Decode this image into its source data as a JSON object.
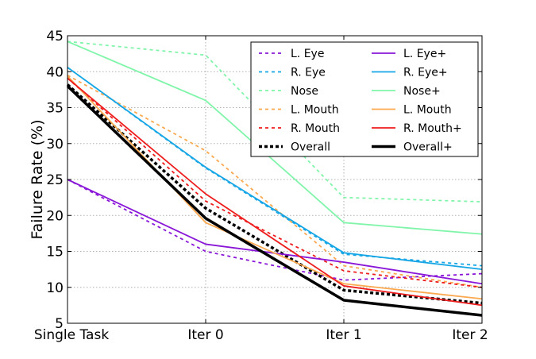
{
  "chart_data": {
    "type": "line",
    "categories": [
      "Single Task",
      "Iter 0",
      "Iter 1",
      "Iter 2"
    ],
    "ylabel": "Failure Rate (%)",
    "xlabel": "",
    "ylim": [
      5,
      45
    ],
    "yticks": [
      5,
      10,
      15,
      20,
      25,
      30,
      35,
      40,
      45
    ],
    "grid": true,
    "legend_position": "top-right",
    "series": [
      {
        "name": "L. Eye",
        "color": "#8a17d8",
        "dashed": true,
        "bold": false,
        "values": [
          25.0,
          15.0,
          11.0,
          11.9
        ]
      },
      {
        "name": "R. Eye",
        "color": "#16a6e6",
        "dashed": true,
        "bold": false,
        "values": [
          40.6,
          26.6,
          14.6,
          13.0
        ]
      },
      {
        "name": "Nose",
        "color": "#80f5aa",
        "dashed": true,
        "bold": false,
        "values": [
          44.2,
          42.3,
          22.5,
          21.9
        ]
      },
      {
        "name": "L. Mouth",
        "color": "#fba84f",
        "dashed": true,
        "bold": false,
        "values": [
          39.5,
          29.0,
          13.0,
          10.0
        ]
      },
      {
        "name": "R. Mouth",
        "color": "#ee1c1c",
        "dashed": true,
        "bold": false,
        "values": [
          39.1,
          22.0,
          12.3,
          10.0
        ]
      },
      {
        "name": "Overall",
        "color": "#000000",
        "dashed": true,
        "bold": true,
        "values": [
          38.2,
          21.0,
          9.6,
          7.8
        ]
      },
      {
        "name": "L. Eye+",
        "color": "#8a17d8",
        "dashed": false,
        "bold": false,
        "values": [
          25.0,
          16.0,
          13.5,
          10.5
        ]
      },
      {
        "name": "R. Eye+",
        "color": "#16a6e6",
        "dashed": false,
        "bold": false,
        "values": [
          40.6,
          26.7,
          14.8,
          12.5
        ]
      },
      {
        "name": "Nose+",
        "color": "#80f5aa",
        "dashed": false,
        "bold": false,
        "values": [
          44.2,
          36.0,
          19.0,
          17.4
        ]
      },
      {
        "name": "L. Mouth",
        "color": "#fba84f",
        "dashed": false,
        "bold": false,
        "values": [
          39.4,
          19.0,
          10.5,
          8.4
        ]
      },
      {
        "name": "R. Mouth+",
        "color": "#ee1c1c",
        "dashed": false,
        "bold": false,
        "values": [
          39.1,
          23.0,
          10.2,
          7.5
        ]
      },
      {
        "name": "Overall+",
        "color": "#000000",
        "dashed": false,
        "bold": true,
        "values": [
          38.0,
          19.6,
          8.2,
          6.1
        ]
      }
    ]
  }
}
